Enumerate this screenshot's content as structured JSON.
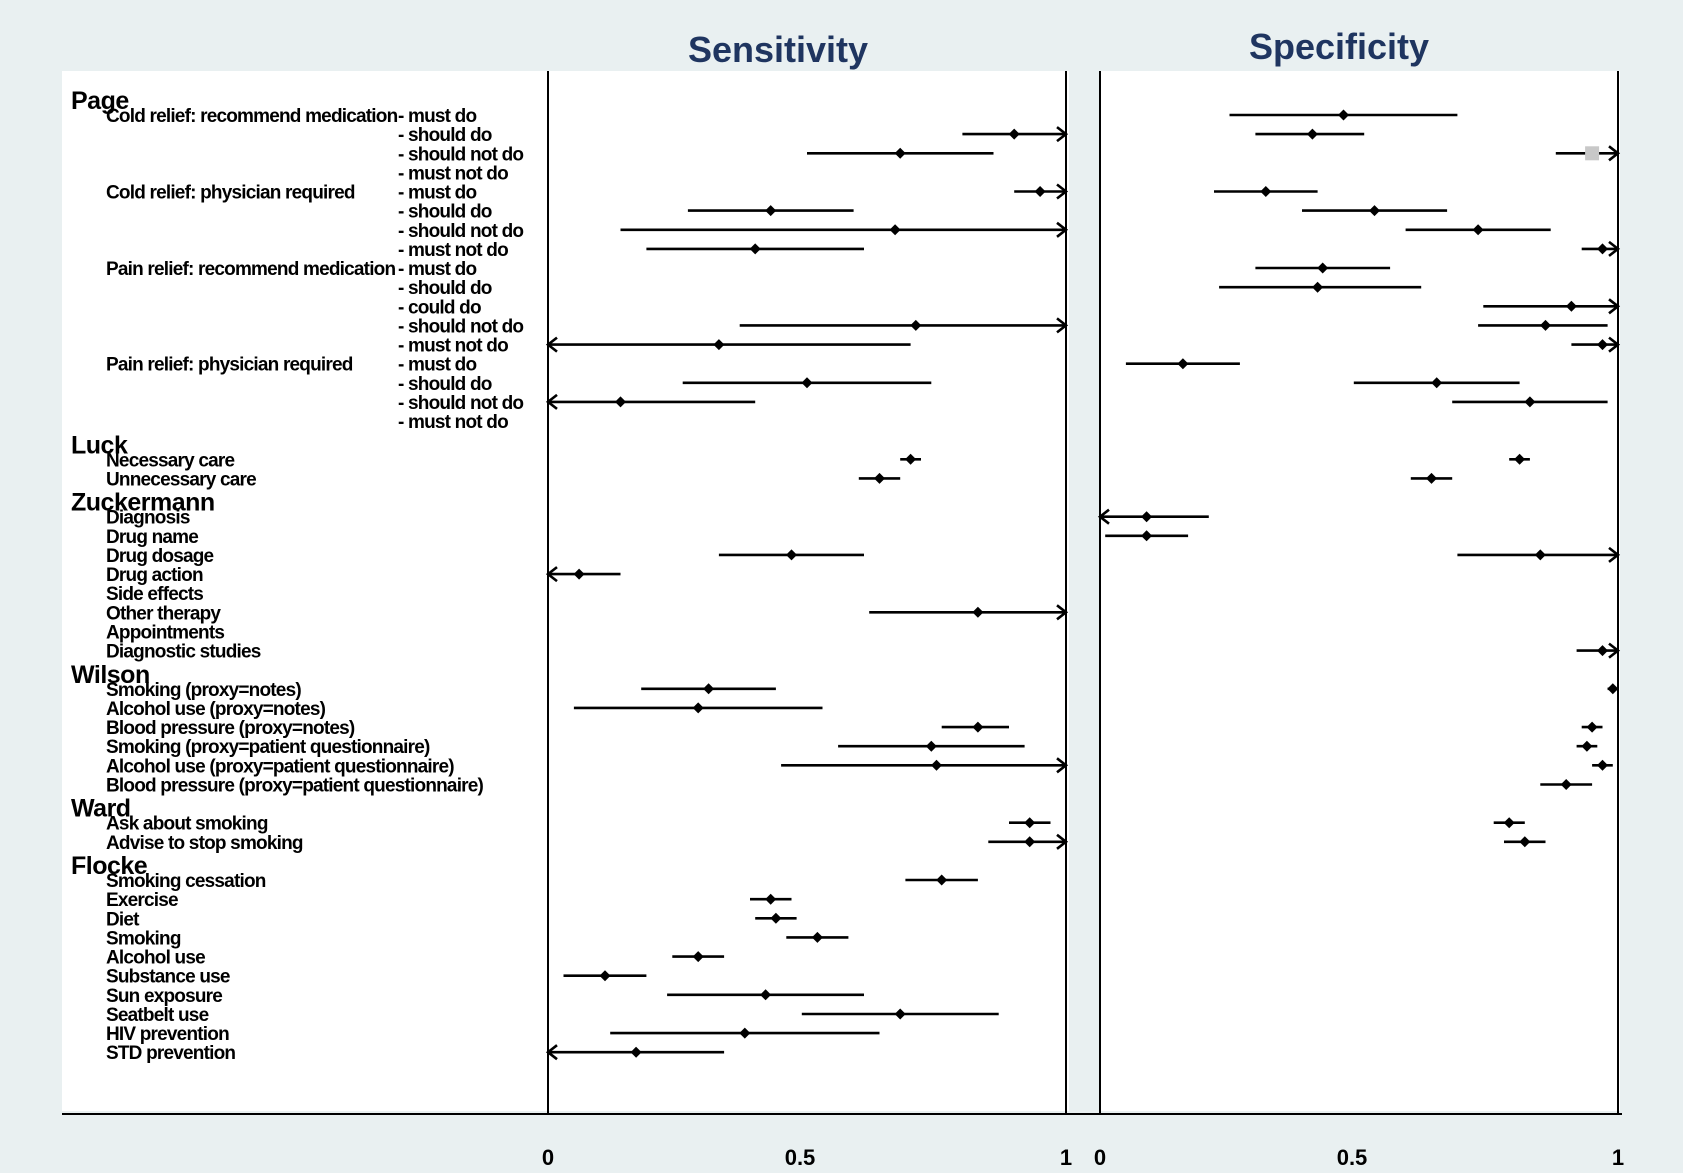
{
  "chart_data": {
    "type": "forest",
    "panels": [
      {
        "key": "sens",
        "title": "Sensitivity",
        "xlim": [
          0,
          1
        ],
        "ticks": [
          "0",
          "0.5",
          "1"
        ]
      },
      {
        "key": "spec",
        "title": "Specificity",
        "xlim": [
          0,
          1
        ],
        "ticks": [
          "0",
          "0.5",
          "1"
        ]
      }
    ],
    "groups": [
      "Page",
      "Luck",
      "Zuckermann",
      "Wilson",
      "Ward",
      "Flocke"
    ],
    "rows": [
      {
        "group": "Page",
        "label": "Cold relief: recommend medication",
        "sub": "- must do",
        "sens": null,
        "spec": {
          "est": 0.47,
          "lo": 0.25,
          "hi": 0.69
        }
      },
      {
        "group": "Page",
        "label": "",
        "sub": "- should do",
        "sens": {
          "est": 0.9,
          "lo": 0.8,
          "hi": 1.0,
          "arrow_hi": true
        },
        "spec": {
          "est": 0.41,
          "lo": 0.3,
          "hi": 0.51
        }
      },
      {
        "group": "Page",
        "label": "",
        "sub": "- should not do",
        "sens": {
          "est": 0.68,
          "lo": 0.5,
          "hi": 0.86
        },
        "spec": {
          "est": 0.95,
          "lo": 0.88,
          "hi": 1.0,
          "arrow_hi": true,
          "marker": "square"
        }
      },
      {
        "group": "Page",
        "label": "",
        "sub": "- must not do",
        "sens": null,
        "spec": null
      },
      {
        "group": "Page",
        "label": "Cold relief: physician required",
        "sub": "- must do",
        "sens": {
          "est": 0.95,
          "lo": 0.9,
          "hi": 1.0,
          "arrow_hi": true
        },
        "spec": {
          "est": 0.32,
          "lo": 0.22,
          "hi": 0.42
        }
      },
      {
        "group": "Page",
        "label": "",
        "sub": "- should do",
        "sens": {
          "est": 0.43,
          "lo": 0.27,
          "hi": 0.59
        },
        "spec": {
          "est": 0.53,
          "lo": 0.39,
          "hi": 0.67
        }
      },
      {
        "group": "Page",
        "label": "",
        "sub": "- should not do",
        "sens": {
          "est": 0.67,
          "lo": 0.14,
          "hi": 1.0,
          "arrow_hi": true
        },
        "spec": {
          "est": 0.73,
          "lo": 0.59,
          "hi": 0.87
        }
      },
      {
        "group": "Page",
        "label": "",
        "sub": "- must not do",
        "sens": {
          "est": 0.4,
          "lo": 0.19,
          "hi": 0.61
        },
        "spec": {
          "est": 0.97,
          "lo": 0.93,
          "hi": 1.0,
          "arrow_hi": true
        }
      },
      {
        "group": "Page",
        "label": "Pain relief: recommend medication",
        "sub": "- must do",
        "sens": null,
        "spec": {
          "est": 0.43,
          "lo": 0.3,
          "hi": 0.56
        }
      },
      {
        "group": "Page",
        "label": "",
        "sub": "- should do",
        "sens": null,
        "spec": {
          "est": 0.42,
          "lo": 0.23,
          "hi": 0.62
        }
      },
      {
        "group": "Page",
        "label": "",
        "sub": "- could do",
        "sens": null,
        "spec": {
          "est": 0.91,
          "lo": 0.74,
          "hi": 1.0,
          "arrow_hi": true
        }
      },
      {
        "group": "Page",
        "label": "",
        "sub": "- should not do",
        "sens": {
          "est": 0.71,
          "lo": 0.37,
          "hi": 1.0,
          "arrow_hi": true
        },
        "spec": {
          "est": 0.86,
          "lo": 0.73,
          "hi": 0.98
        }
      },
      {
        "group": "Page",
        "label": "",
        "sub": "- must not do",
        "sens": {
          "est": 0.33,
          "lo": 0.0,
          "hi": 0.7,
          "arrow_lo": true
        },
        "spec": {
          "est": 0.97,
          "lo": 0.91,
          "hi": 1.0,
          "arrow_hi": true
        }
      },
      {
        "group": "Page",
        "label": "Pain relief: physician required",
        "sub": "- must do",
        "sens": null,
        "spec": {
          "est": 0.16,
          "lo": 0.05,
          "hi": 0.27
        }
      },
      {
        "group": "Page",
        "label": "",
        "sub": "- should do",
        "sens": {
          "est": 0.5,
          "lo": 0.26,
          "hi": 0.74
        },
        "spec": {
          "est": 0.65,
          "lo": 0.49,
          "hi": 0.81
        }
      },
      {
        "group": "Page",
        "label": "",
        "sub": "- should not do",
        "sens": {
          "est": 0.14,
          "lo": 0.0,
          "hi": 0.4,
          "arrow_lo": true
        },
        "spec": {
          "est": 0.83,
          "lo": 0.68,
          "hi": 0.98
        }
      },
      {
        "group": "Page",
        "label": "",
        "sub": "- must not do",
        "sens": null,
        "spec": null
      },
      {
        "group": "Luck",
        "label": "Necessary care",
        "sub": "",
        "sens": {
          "est": 0.7,
          "lo": 0.68,
          "hi": 0.72
        },
        "spec": {
          "est": 0.81,
          "lo": 0.79,
          "hi": 0.83
        }
      },
      {
        "group": "Luck",
        "label": "Unnecessary care",
        "sub": "",
        "sens": {
          "est": 0.64,
          "lo": 0.6,
          "hi": 0.68
        },
        "spec": {
          "est": 0.64,
          "lo": 0.6,
          "hi": 0.68
        }
      },
      {
        "group": "Zuckermann",
        "label": "Diagnosis",
        "sub": "",
        "sens": null,
        "spec": {
          "est": 0.09,
          "lo": 0.0,
          "hi": 0.21,
          "arrow_lo": true
        }
      },
      {
        "group": "Zuckermann",
        "label": "Drug name",
        "sub": "",
        "sens": null,
        "spec": {
          "est": 0.09,
          "lo": 0.01,
          "hi": 0.17
        }
      },
      {
        "group": "Zuckermann",
        "label": "Drug dosage",
        "sub": "",
        "sens": {
          "est": 0.47,
          "lo": 0.33,
          "hi": 0.61
        },
        "spec": {
          "est": 0.85,
          "lo": 0.69,
          "hi": 1.0,
          "arrow_hi": true
        }
      },
      {
        "group": "Zuckermann",
        "label": "Drug action",
        "sub": "",
        "sens": {
          "est": 0.06,
          "lo": 0.0,
          "hi": 0.14,
          "arrow_lo": true
        },
        "spec": null
      },
      {
        "group": "Zuckermann",
        "label": "Side effects",
        "sub": "",
        "sens": null,
        "spec": null
      },
      {
        "group": "Zuckermann",
        "label": "Other therapy",
        "sub": "",
        "sens": {
          "est": 0.83,
          "lo": 0.62,
          "hi": 1.0,
          "arrow_hi": true
        },
        "spec": null
      },
      {
        "group": "Zuckermann",
        "label": "Appointments",
        "sub": "",
        "sens": null,
        "spec": null
      },
      {
        "group": "Zuckermann",
        "label": "Diagnostic studies",
        "sub": "",
        "sens": null,
        "spec": {
          "est": 0.97,
          "lo": 0.92,
          "hi": 1.0,
          "arrow_hi": true
        }
      },
      {
        "group": "Wilson",
        "label": "Smoking (proxy=notes)",
        "sub": "",
        "sens": {
          "est": 0.31,
          "lo": 0.18,
          "hi": 0.44
        },
        "spec": {
          "est": 0.99,
          "lo": 0.98,
          "hi": 1.0
        }
      },
      {
        "group": "Wilson",
        "label": "Alcohol use  (proxy=notes)",
        "sub": "",
        "sens": {
          "est": 0.29,
          "lo": 0.05,
          "hi": 0.53
        },
        "spec": null
      },
      {
        "group": "Wilson",
        "label": "Blood pressure  (proxy=notes)",
        "sub": "",
        "sens": {
          "est": 0.83,
          "lo": 0.76,
          "hi": 0.89
        },
        "spec": {
          "est": 0.95,
          "lo": 0.93,
          "hi": 0.97
        }
      },
      {
        "group": "Wilson",
        "label": "Smoking  (proxy=patient questionnaire)",
        "sub": "",
        "sens": {
          "est": 0.74,
          "lo": 0.56,
          "hi": 0.92
        },
        "spec": {
          "est": 0.94,
          "lo": 0.92,
          "hi": 0.96
        }
      },
      {
        "group": "Wilson",
        "label": "Alcohol use (proxy=patient questionnaire)",
        "sub": "",
        "sens": {
          "est": 0.75,
          "lo": 0.45,
          "hi": 1.0,
          "arrow_hi": true
        },
        "spec": {
          "est": 0.97,
          "lo": 0.95,
          "hi": 0.99
        }
      },
      {
        "group": "Wilson",
        "label": "Blood pressure (proxy=patient questionnaire)",
        "sub": "",
        "sens": null,
        "spec": {
          "est": 0.9,
          "lo": 0.85,
          "hi": 0.95
        }
      },
      {
        "group": "Ward",
        "label": "Ask about smoking",
        "sub": "",
        "sens": {
          "est": 0.93,
          "lo": 0.89,
          "hi": 0.97
        },
        "spec": {
          "est": 0.79,
          "lo": 0.76,
          "hi": 0.82
        }
      },
      {
        "group": "Ward",
        "label": "Advise to stop smoking",
        "sub": "",
        "sens": {
          "est": 0.93,
          "lo": 0.85,
          "hi": 1.0,
          "arrow_hi": true
        },
        "spec": {
          "est": 0.82,
          "lo": 0.78,
          "hi": 0.86
        }
      },
      {
        "group": "Flocke",
        "label": "Smoking cessation",
        "sub": "",
        "sens": {
          "est": 0.76,
          "lo": 0.69,
          "hi": 0.83
        },
        "spec": null
      },
      {
        "group": "Flocke",
        "label": "Exercise",
        "sub": "",
        "sens": {
          "est": 0.43,
          "lo": 0.39,
          "hi": 0.47
        },
        "spec": null
      },
      {
        "group": "Flocke",
        "label": "Diet",
        "sub": "",
        "sens": {
          "est": 0.44,
          "lo": 0.4,
          "hi": 0.48
        },
        "spec": null
      },
      {
        "group": "Flocke",
        "label": "Smoking",
        "sub": "",
        "sens": {
          "est": 0.52,
          "lo": 0.46,
          "hi": 0.58
        },
        "spec": null
      },
      {
        "group": "Flocke",
        "label": "Alcohol use",
        "sub": "",
        "sens": {
          "est": 0.29,
          "lo": 0.24,
          "hi": 0.34
        },
        "spec": null
      },
      {
        "group": "Flocke",
        "label": "Substance use",
        "sub": "",
        "sens": {
          "est": 0.11,
          "lo": 0.03,
          "hi": 0.19
        },
        "spec": null
      },
      {
        "group": "Flocke",
        "label": "Sun exposure",
        "sub": "",
        "sens": {
          "est": 0.42,
          "lo": 0.23,
          "hi": 0.61
        },
        "spec": null
      },
      {
        "group": "Flocke",
        "label": "Seatbelt use",
        "sub": "",
        "sens": {
          "est": 0.68,
          "lo": 0.49,
          "hi": 0.87
        },
        "spec": null
      },
      {
        "group": "Flocke",
        "label": "HIV prevention",
        "sub": "",
        "sens": {
          "est": 0.38,
          "lo": 0.12,
          "hi": 0.64
        },
        "spec": null
      },
      {
        "group": "Flocke",
        "label": "STD prevention",
        "sub": "",
        "sens": {
          "est": 0.17,
          "lo": 0.0,
          "hi": 0.34,
          "arrow_lo": true
        },
        "spec": null
      }
    ]
  }
}
